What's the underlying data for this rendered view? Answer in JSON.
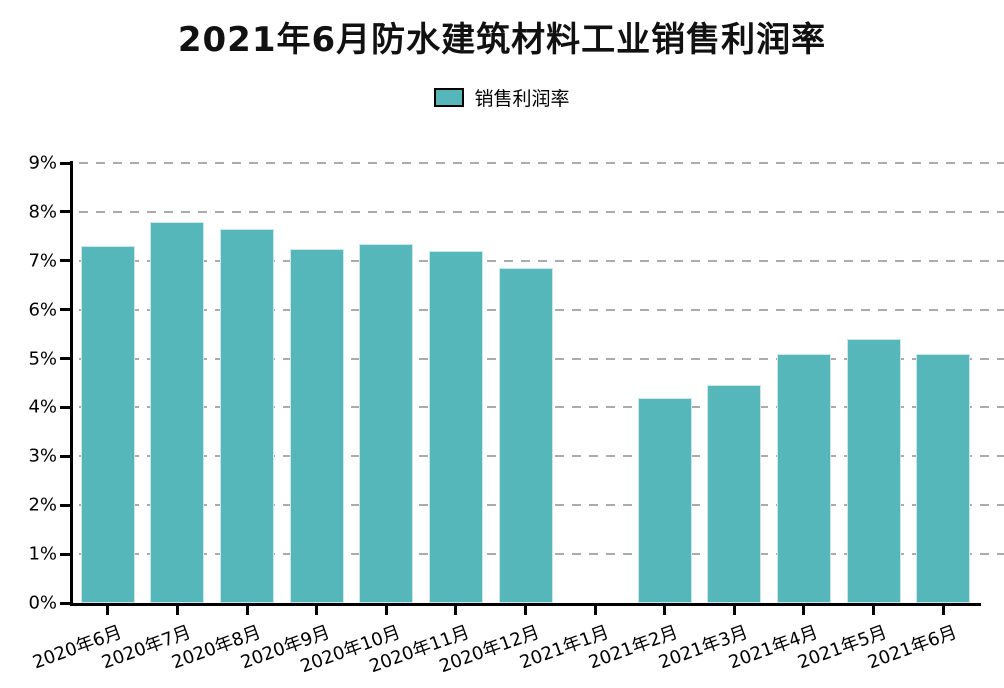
{
  "title": "2021年6月防水建筑材料工业销售利润率",
  "legend": {
    "label": "销售利润率"
  },
  "colors": {
    "bar": "#55b7ba",
    "axis": "#000000",
    "grid": "#ababab",
    "text": "#000000",
    "background": "#ffffff"
  },
  "chart_data": {
    "type": "bar",
    "title": "2021年6月防水建筑材料工业销售利润率",
    "categories": [
      "2020年6月",
      "2020年7月",
      "2020年8月",
      "2020年9月",
      "2020年10月",
      "2020年11月",
      "2020年12月",
      "2021年1月",
      "2021年2月",
      "2021年3月",
      "2021年4月",
      "2021年5月",
      "2021年6月"
    ],
    "series": [
      {
        "name": "销售利润率",
        "values": [
          7.3,
          7.8,
          7.65,
          7.25,
          7.35,
          7.2,
          6.85,
          null,
          4.2,
          4.45,
          5.1,
          5.4,
          5.1
        ]
      }
    ],
    "unit": "%",
    "xlabel": "",
    "ylabel": "",
    "ylim": [
      0,
      9
    ],
    "ytick_step": 1,
    "ytick_labels": [
      "0%",
      "1%",
      "2%",
      "3%",
      "4%",
      "5%",
      "6%",
      "7%",
      "8%",
      "9%"
    ],
    "grid": "horizontal-dashed",
    "legend_position": "top-center",
    "x_label_rotation": -20,
    "missing_categories": [
      "2021年1月"
    ]
  }
}
